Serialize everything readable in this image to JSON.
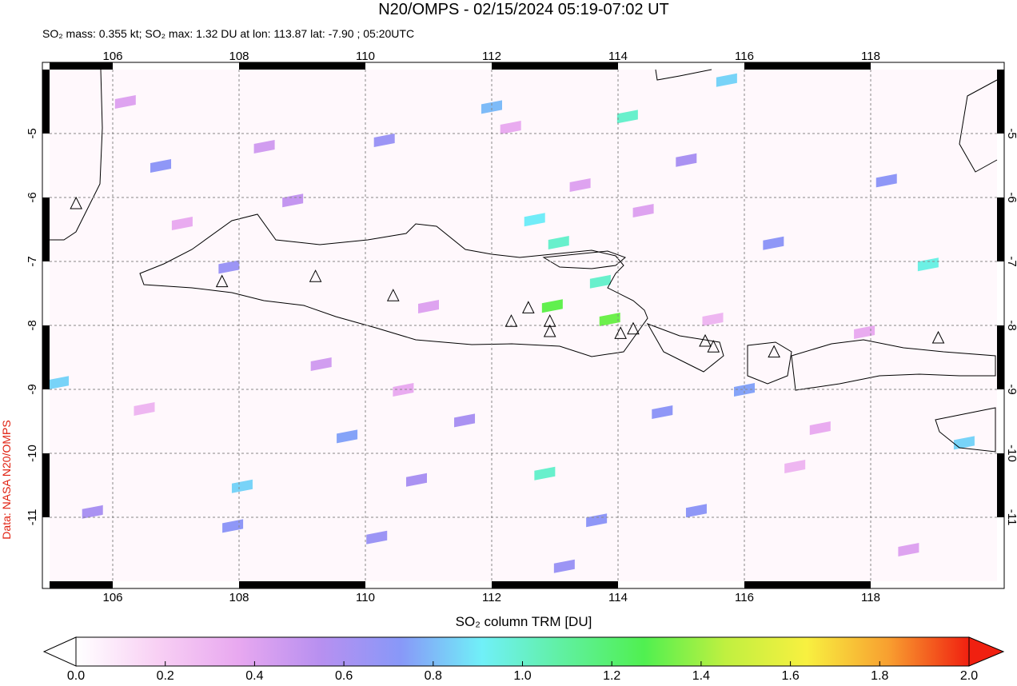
{
  "chart_data": {
    "type": "map",
    "title": "N20/OMPS - 02/15/2024 05:19-07:02 UT",
    "subtitle": "SO₂ mass: 0.355 kt; SO₂ max: 1.32 DU at lon: 113.87 lat: -7.90 ; 05:20UTC",
    "xlim": [
      105,
      120
    ],
    "ylim": [
      -4,
      -12
    ],
    "xticks": [
      106,
      108,
      110,
      112,
      114,
      116,
      118
    ],
    "yticks": [
      -5,
      -6,
      -7,
      -8,
      -9,
      -10,
      -11
    ],
    "grid": true,
    "source": "Data: NASA N20/OMPS",
    "colorbar": {
      "label": "SO₂ column TRM [DU]",
      "range": [
        0,
        2
      ],
      "ticks": [
        {
          "value": 0,
          "label": "0.0"
        },
        0.2,
        0.4,
        0.6,
        0.8,
        {
          "value": 1,
          "label": "1.0"
        },
        1.2,
        1.4,
        1.6,
        1.8,
        {
          "value": 2,
          "label": "2.0"
        }
      ],
      "colors": [
        "#ffffff",
        "#f8d0f4",
        "#e8a8f0",
        "#b890f0",
        "#8898f8",
        "#70f0f8",
        "#60f0a0",
        "#50f050",
        "#c0f040",
        "#f8f040",
        "#f8a030",
        "#f02010"
      ]
    },
    "volcanoes": {
      "lon": [
        105.42,
        107.73,
        109.21,
        110.44,
        112.31,
        112.58,
        112.92,
        112.92,
        114.04,
        114.24,
        115.38,
        115.51,
        116.47,
        119.07
      ],
      "lat": [
        -6.1,
        -7.32,
        -7.24,
        -7.54,
        -7.94,
        -7.73,
        -7.94,
        -8.1,
        -8.13,
        -8.06,
        -8.25,
        -8.34,
        -8.42,
        -8.2
      ]
    },
    "pixels": {
      "lon": [
        113.87,
        112.96,
        114.15,
        113.06,
        112.84,
        113.72,
        112.0,
        112.68,
        115.72,
        105.14,
        109.71,
        108.05,
        118.91,
        119.48,
        106.76,
        110.3,
        110.81,
        113.15,
        113.66,
        114.7,
        115.24,
        116.0,
        116.46,
        118.25,
        107.84,
        111.57,
        107.9,
        105.68,
        108.85,
        115.08,
        110.18,
        106.2,
        107.1,
        109.3,
        111.0,
        112.3,
        113.4,
        115.5,
        117.2,
        118.6,
        106.5,
        108.4,
        110.6,
        114.4,
        116.8,
        117.9
      ],
      "lat": [
        -7.9,
        -7.69,
        -4.73,
        -6.7,
        -10.31,
        -7.31,
        -4.58,
        -6.34,
        -4.16,
        -8.89,
        -9.73,
        -10.51,
        -7.04,
        -9.83,
        -5.5,
        -5.1,
        -10.41,
        -11.76,
        -11.04,
        -9.35,
        -10.89,
        -9.0,
        -6.71,
        -5.73,
        -7.08,
        -9.48,
        -11.13,
        -10.91,
        -6.04,
        -5.41,
        -11.31,
        -4.5,
        -6.4,
        -8.6,
        -7.7,
        -4.9,
        -5.8,
        -7.9,
        -9.6,
        -11.5,
        -9.3,
        -5.2,
        -9.0,
        -6.2,
        -10.2,
        -8.1
      ],
      "values": [
        1.32,
        1.3,
        1.0,
        1.0,
        1.0,
        1.0,
        0.8,
        0.9,
        0.85,
        0.85,
        0.75,
        0.85,
        0.95,
        0.85,
        0.7,
        0.65,
        0.6,
        0.65,
        0.7,
        0.7,
        0.7,
        0.75,
        0.7,
        0.7,
        0.65,
        0.6,
        0.7,
        0.6,
        0.5,
        0.6,
        0.65,
        0.4,
        0.35,
        0.45,
        0.4,
        0.35,
        0.4,
        0.3,
        0.35,
        0.4,
        0.3,
        0.45,
        0.35,
        0.4,
        0.3,
        0.35
      ]
    }
  }
}
